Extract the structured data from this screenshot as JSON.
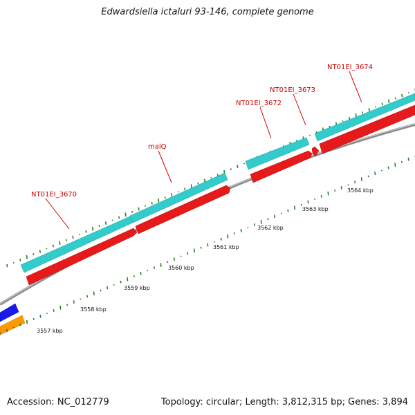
{
  "title": "Edwardsiella ictaluri 93-146, complete genome",
  "footer": {
    "accession": "Accession: NC_012779",
    "summary": "Topology: circular; Length: 3,812,315 bp; Genes: 3,894"
  },
  "colors": {
    "cds_track": "#33cccc",
    "gene_track": "#e61a1a",
    "backbone": "#888888",
    "gc_ticks": "#2a7d2a",
    "label": "#cc0000",
    "blue_feature": "#1a1aee",
    "orange_feature": "#ff9900"
  },
  "genes": [
    {
      "name": "NT01EI_3670"
    },
    {
      "name": "malQ"
    },
    {
      "name": "NT01EI_3672"
    },
    {
      "name": "NT01EI_3673"
    },
    {
      "name": "NT01EI_3674"
    }
  ],
  "scale_ticks": [
    {
      "label": "3557 kbp"
    },
    {
      "label": "3558 kbp"
    },
    {
      "label": "3559 kbp"
    },
    {
      "label": "3560 kbp"
    },
    {
      "label": "3561 kbp"
    },
    {
      "label": "3562 kbp"
    },
    {
      "label": "3563 kbp"
    },
    {
      "label": "3564 kbp"
    }
  ]
}
